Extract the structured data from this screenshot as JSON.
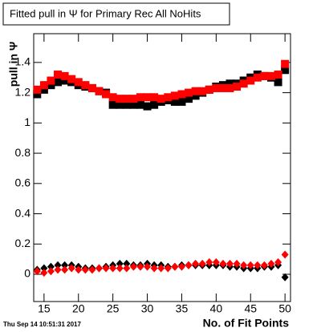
{
  "chart_data": {
    "type": "scatter",
    "title": "Fitted pull in Ψ  for Primary Rec All NoHits",
    "xlabel": "No. of Fit Points",
    "ylabel": "pull in Ψ",
    "footer": "Thu Sep 14 10:51:31 2017",
    "x": [
      14,
      15,
      16,
      17,
      18,
      19,
      20,
      21,
      22,
      23,
      24,
      25,
      26,
      27,
      28,
      29,
      30,
      31,
      32,
      33,
      34,
      35,
      36,
      37,
      38,
      39,
      40,
      41,
      42,
      43,
      44,
      45,
      46,
      47,
      48,
      49,
      50
    ],
    "xlim": [
      13.5,
      50.8
    ],
    "ylim": [
      -0.18,
      1.59
    ],
    "xticks": [
      15,
      20,
      25,
      30,
      35,
      40,
      45,
      50
    ],
    "yticks": [
      0,
      0.2,
      0.4,
      0.6,
      0.8,
      1,
      1.2,
      1.4
    ],
    "grid": false,
    "series": [
      {
        "color": "#000000",
        "marker": "square",
        "values": [
          1.19,
          1.22,
          1.25,
          1.27,
          1.28,
          1.27,
          1.25,
          1.24,
          1.23,
          1.21,
          1.2,
          1.12,
          1.12,
          1.12,
          1.12,
          1.12,
          1.11,
          1.12,
          1.14,
          1.15,
          1.14,
          1.14,
          1.16,
          1.18,
          1.2,
          1.22,
          1.24,
          1.25,
          1.26,
          1.26,
          1.28,
          1.3,
          1.32,
          1.31,
          1.3,
          1.27,
          1.35
        ]
      },
      {
        "color": "#ff0000",
        "marker": "square",
        "values": [
          1.22,
          1.25,
          1.28,
          1.32,
          1.31,
          1.29,
          1.27,
          1.25,
          1.23,
          1.21,
          1.19,
          1.17,
          1.16,
          1.16,
          1.16,
          1.17,
          1.17,
          1.17,
          1.16,
          1.17,
          1.18,
          1.19,
          1.2,
          1.21,
          1.21,
          1.22,
          1.23,
          1.23,
          1.23,
          1.24,
          1.26,
          1.28,
          1.3,
          1.31,
          1.31,
          1.32,
          1.39
        ]
      },
      {
        "color": "#000000",
        "marker": "diamond",
        "values": [
          0.03,
          0.04,
          0.05,
          0.06,
          0.06,
          0.06,
          0.05,
          0.04,
          0.04,
          0.04,
          0.05,
          0.06,
          0.07,
          0.07,
          0.06,
          0.06,
          0.07,
          0.06,
          0.06,
          0.05,
          0.05,
          0.06,
          0.06,
          0.06,
          0.06,
          0.06,
          0.06,
          0.06,
          0.05,
          0.05,
          0.04,
          0.04,
          0.04,
          0.05,
          0.05,
          0.06,
          -0.02
        ]
      },
      {
        "color": "#ff0000",
        "marker": "diamond",
        "values": [
          0.02,
          0.01,
          0.02,
          0.03,
          0.03,
          0.04,
          0.03,
          0.03,
          0.03,
          0.04,
          0.04,
          0.04,
          0.04,
          0.04,
          0.05,
          0.05,
          0.05,
          0.04,
          0.04,
          0.04,
          0.05,
          0.05,
          0.06,
          0.07,
          0.07,
          0.08,
          0.08,
          0.07,
          0.07,
          0.07,
          0.06,
          0.06,
          0.06,
          0.06,
          0.07,
          0.08,
          0.13
        ]
      }
    ]
  }
}
